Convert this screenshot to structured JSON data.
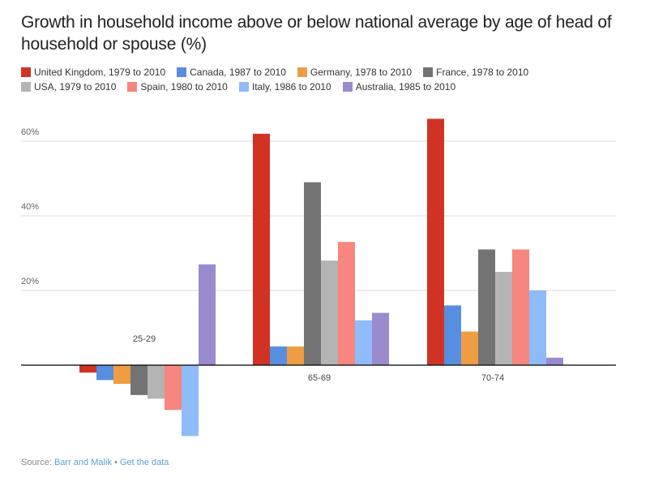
{
  "chart_data": {
    "type": "bar",
    "title": "Growth in household income above or below national average by age of head of household or spouse (%)",
    "xlabel": "",
    "ylabel": "",
    "ylim": [
      -20,
      70
    ],
    "yticks": [
      20,
      40,
      60
    ],
    "ytick_labels": [
      "20%",
      "40%",
      "60%"
    ],
    "grid": true,
    "legend_position": "top-left",
    "categories": [
      "25-29",
      "65-69",
      "70-74"
    ],
    "series": [
      {
        "name": "United Kingdom, 1979 to 2010",
        "color": "#d03324",
        "values": [
          -2,
          62,
          66
        ]
      },
      {
        "name": "Canada, 1987 to 2010",
        "color": "#578ee0",
        "values": [
          -4,
          5,
          16
        ]
      },
      {
        "name": "Germany, 1978 to 2010",
        "color": "#ef9d43",
        "values": [
          -5,
          5,
          9
        ]
      },
      {
        "name": "France, 1978 to 2010",
        "color": "#737373",
        "values": [
          -8,
          49,
          31
        ]
      },
      {
        "name": "USA, 1979 to 2010",
        "color": "#b4b4b4",
        "values": [
          -9,
          28,
          25
        ]
      },
      {
        "name": "Spain, 1980 to 2010",
        "color": "#f6867e",
        "values": [
          -12,
          33,
          31
        ]
      },
      {
        "name": "Italy, 1986 to 2010",
        "color": "#8fbbf9",
        "values": [
          -19,
          12,
          20
        ]
      },
      {
        "name": "Australia, 1985 to 2010",
        "color": "#9a8bce",
        "values": [
          27,
          14,
          2
        ]
      }
    ]
  },
  "footer": {
    "source_prefix": "Source: ",
    "source_link": "Barr and Malik",
    "separator": " • ",
    "data_link": "Get the data"
  }
}
